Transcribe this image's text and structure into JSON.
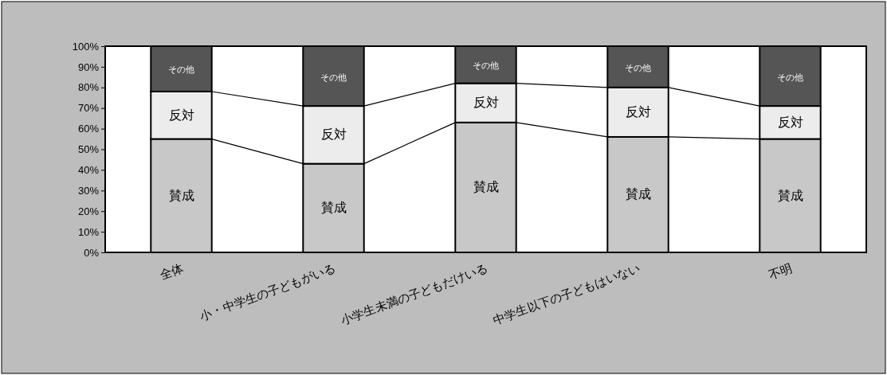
{
  "chart_data": {
    "type": "bar",
    "stacked": true,
    "categories": [
      "全体",
      "小・中学生の子どもがいる",
      "小学生未満の子どもだけいる",
      "中学生以下の子どもはいない",
      "不明"
    ],
    "series": [
      {
        "name": "賛成",
        "color": "#c8c8c8",
        "values": [
          55,
          43,
          63,
          56,
          55
        ]
      },
      {
        "name": "反対",
        "color": "#ececec",
        "values": [
          23,
          28,
          19,
          24,
          16
        ]
      },
      {
        "name": "その他",
        "color": "#555555",
        "values": [
          22,
          29,
          18,
          20,
          29
        ]
      }
    ],
    "ylim": [
      0,
      100
    ],
    "yticks": [
      {
        "value": 0,
        "label": "0%"
      },
      {
        "value": 10,
        "label": "10%"
      },
      {
        "value": 20,
        "label": "20%"
      },
      {
        "value": 30,
        "label": "30%"
      },
      {
        "value": 40,
        "label": "40%"
      },
      {
        "value": 50,
        "label": "50%"
      },
      {
        "value": 60,
        "label": "60%"
      },
      {
        "value": 70,
        "label": "70%"
      },
      {
        "value": 80,
        "label": "80%"
      },
      {
        "value": 90,
        "label": "90%"
      },
      {
        "value": 100,
        "label": "100%"
      }
    ],
    "grid": false,
    "legend": false
  }
}
